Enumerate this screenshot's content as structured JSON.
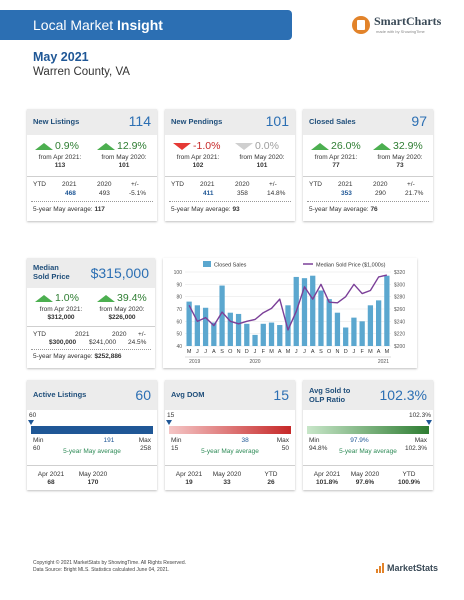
{
  "header": {
    "title_prefix": "Local Market",
    "title_bold": "Insight",
    "brand": "SmartCharts",
    "brand_tag": "made with by ShowingTime"
  },
  "report": {
    "period": "May 2021",
    "location": "Warren County, VA"
  },
  "colors": {
    "accent": "#2c6fb3",
    "up": "#4caf50",
    "down": "#e53935",
    "bar": "#5ba7cf",
    "line": "#7b3f98"
  },
  "cards": [
    {
      "label": "New Listings",
      "value": "114",
      "c1": {
        "pct": "0.9%",
        "dir": "up",
        "from": "from Apr 2021:",
        "num": "113"
      },
      "c2": {
        "pct": "12.9%",
        "dir": "up",
        "from": "from May 2020:",
        "num": "101"
      },
      "ytd": {
        "label": "YTD",
        "y1": "2021",
        "y2": "2020",
        "y3": "+/-",
        "v1": "468",
        "v2": "493",
        "v3": "-5.1%"
      },
      "avg": {
        "label": "5-year May average:",
        "value": "117"
      }
    },
    {
      "label": "New Pendings",
      "value": "101",
      "c1": {
        "pct": "-1.0%",
        "dir": "down",
        "from": "from Apr 2021:",
        "num": "102"
      },
      "c2": {
        "pct": "0.0%",
        "dir": "flat",
        "from": "from May 2020:",
        "num": "101"
      },
      "ytd": {
        "label": "YTD",
        "y1": "2021",
        "y2": "2020",
        "y3": "+/-",
        "v1": "411",
        "v2": "358",
        "v3": "14.8%"
      },
      "avg": {
        "label": "5-year May average:",
        "value": "93"
      }
    },
    {
      "label": "Closed Sales",
      "value": "97",
      "c1": {
        "pct": "26.0%",
        "dir": "up",
        "from": "from Apr 2021:",
        "num": "77"
      },
      "c2": {
        "pct": "32.9%",
        "dir": "up",
        "from": "from May 2020:",
        "num": "73"
      },
      "ytd": {
        "label": "YTD",
        "y1": "2021",
        "y2": "2020",
        "y3": "+/-",
        "v1": "353",
        "v2": "290",
        "v3": "21.7%"
      },
      "avg": {
        "label": "5-year May average:",
        "value": "76"
      }
    }
  ],
  "median": {
    "label1": "Median",
    "label2": "Sold Price",
    "value": "$315,000",
    "c1": {
      "pct": "1.0%",
      "dir": "up",
      "from": "from Apr 2021:",
      "num": "$312,000"
    },
    "c2": {
      "pct": "39.4%",
      "dir": "up",
      "from": "from May 2020:",
      "num": "$226,000"
    },
    "ytd": {
      "label": "YTD",
      "y1": "2021",
      "y2": "2020",
      "y3": "+/-",
      "v1": "$300,000",
      "v2": "$241,000",
      "v3": "24.5%"
    },
    "avg": {
      "label": "5-year May average:",
      "value": "$252,886"
    }
  },
  "chart_data": {
    "type": "bar",
    "legend": [
      "Closed Sales",
      "Median Sold Price ($1,000s)"
    ],
    "categories": [
      "M",
      "J",
      "J",
      "A",
      "S",
      "O",
      "N",
      "D",
      "J",
      "F",
      "M",
      "A",
      "M",
      "J",
      "J",
      "A",
      "S",
      "O",
      "N",
      "D",
      "J",
      "F",
      "M",
      "A",
      "M"
    ],
    "years": [
      "2019",
      "2020",
      "2021"
    ],
    "series": [
      {
        "name": "Closed Sales",
        "type": "bar",
        "axis": "left",
        "values": [
          76,
          73,
          71,
          59,
          89,
          67,
          66,
          58,
          49,
          58,
          59,
          57,
          73,
          96,
          95,
          97,
          85,
          78,
          67,
          55,
          63,
          60,
          73,
          77,
          97
        ]
      },
      {
        "name": "Median Sold Price ($1,000s)",
        "type": "line",
        "axis": "right",
        "values": [
          266,
          240,
          246,
          233,
          255,
          240,
          236,
          240,
          243,
          254,
          261,
          276,
          226,
          256,
          296,
          276,
          300,
          271,
          270,
          280,
          300,
          285,
          290,
          312,
          315
        ]
      }
    ],
    "ylim_left": [
      40,
      100
    ],
    "yticks_left": [
      "100",
      "90",
      "80",
      "70",
      "60",
      "50",
      "40"
    ],
    "ylim_right": [
      200,
      320
    ],
    "yticks_right": [
      "$320",
      "$300",
      "$280",
      "$260",
      "$240",
      "$220",
      "$200"
    ]
  },
  "gauges": [
    {
      "label": "Active Listings",
      "value": "60",
      "top_label": "60",
      "min_label": "Min",
      "min_val": "60",
      "max_label": "Max",
      "max_val": "258",
      "avg_val": "191",
      "avg_text": "5-year May average",
      "color1": "#1f5796",
      "color2": "#1f5796",
      "marker": 0.0,
      "avg_pos": 0.66,
      "bottom": [
        {
          "l": "Apr 2021",
          "v": "68"
        },
        {
          "l": "May 2020",
          "v": "170"
        }
      ]
    },
    {
      "label": "Avg DOM",
      "value": "15",
      "top_label": "15",
      "min_label": "Min",
      "min_val": "15",
      "max_label": "Max",
      "max_val": "50",
      "avg_val": "38",
      "avg_text": "5-year May average",
      "color1": "#f5c6c6",
      "color2": "#c62828",
      "marker": 0.0,
      "avg_pos": 0.66,
      "bottom": [
        {
          "l": "Apr 2021",
          "v": "19"
        },
        {
          "l": "May 2020",
          "v": "33"
        },
        {
          "l": "YTD",
          "v": "26"
        }
      ]
    },
    {
      "label": "Avg Sold to",
      "label2": "OLP Ratio",
      "value": "102.3%",
      "top_label": "102.3%",
      "min_label": "Min",
      "min_val": "94.8%",
      "max_label": "Max",
      "max_val": "102.3%",
      "avg_val": "97.9%",
      "avg_text": "5-year May average",
      "color1": "#c8e6c9",
      "color2": "#2e7d32",
      "marker": 1.0,
      "avg_pos": 0.42,
      "bottom": [
        {
          "l": "Apr 2021",
          "v": "101.8%"
        },
        {
          "l": "May 2020",
          "v": "97.6%"
        },
        {
          "l": "YTD",
          "v": "100.9%"
        }
      ]
    }
  ],
  "footer": {
    "line1": "Copyright © 2021 MarketStats by ShowingTime. All Rights Reserved.",
    "line2": "Data Source: Bright MLS. Statistics calculated June 04, 2021.",
    "logo": "MarketStats"
  }
}
